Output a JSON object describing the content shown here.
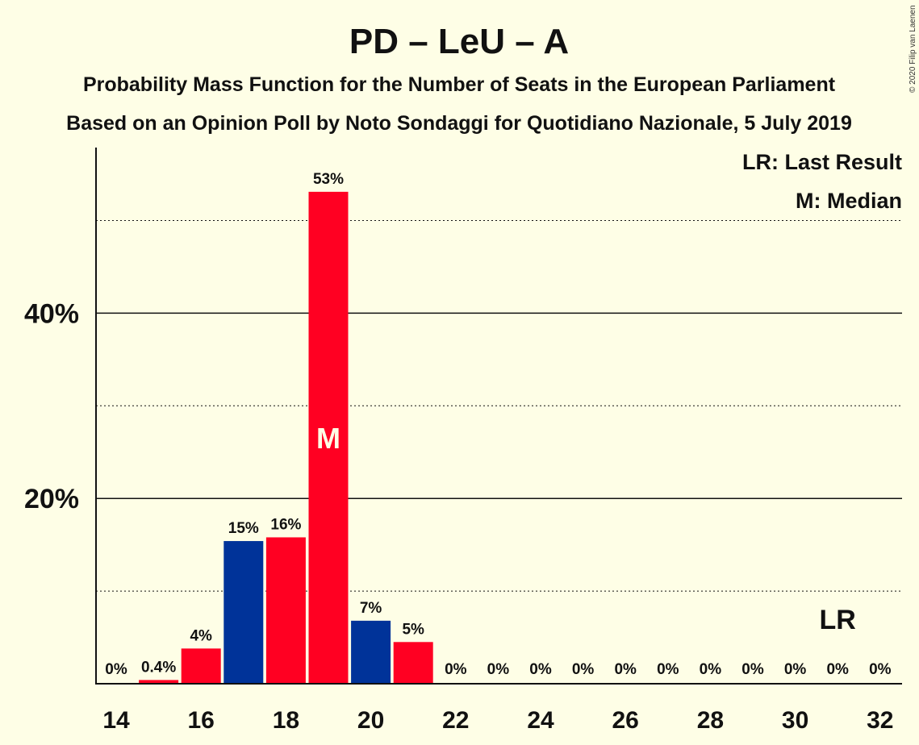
{
  "chart_data": {
    "type": "bar",
    "title": "PD – LeU – A",
    "subtitle_1": "Probability Mass Function for the Number of Seats in the European Parliament",
    "subtitle_2": "Based on an Opinion Poll by Noto Sondaggi for Quotidiano Nazionale, 5 July 2019",
    "copyright": "© 2020 Filip van Laenen",
    "x": [
      14,
      15,
      16,
      17,
      18,
      19,
      20,
      21,
      22,
      23,
      24,
      25,
      26,
      27,
      28,
      29,
      30,
      31,
      32
    ],
    "values": [
      0,
      0.4,
      3.8,
      15.4,
      15.8,
      53.1,
      6.8,
      4.5,
      0,
      0,
      0,
      0,
      0,
      0,
      0,
      0,
      0,
      0,
      0
    ],
    "labels": [
      "0%",
      "0.4%",
      "4%",
      "15%",
      "16%",
      "53%",
      "7%",
      "5%",
      "0%",
      "0%",
      "0%",
      "0%",
      "0%",
      "0%",
      "0%",
      "0%",
      "0%",
      "0%",
      "0%"
    ],
    "bar_colors": [
      "#FF0022",
      "#FF0022",
      "#FF0022",
      "#003399",
      "#FF0022",
      "#FF0022",
      "#003399",
      "#FF0022",
      "#FF0022",
      "#FF0022",
      "#FF0022",
      "#FF0022",
      "#FF0022",
      "#FF0022",
      "#FF0022",
      "#FF0022",
      "#FF0022",
      "#FF0022",
      "#FF0022"
    ],
    "x_ticks": [
      14,
      16,
      18,
      20,
      22,
      24,
      26,
      28,
      30,
      32
    ],
    "y_ticks": [
      {
        "value": 20,
        "label": "20%"
      },
      {
        "value": 40,
        "label": "40%"
      }
    ],
    "minor_gridlines": [
      10,
      30,
      50
    ],
    "ylim": [
      0,
      58
    ],
    "median_seat": 19,
    "median_marker": "M",
    "last_result_seat": 31,
    "last_result_marker": "LR",
    "legend": [
      "LR: Last Result",
      "M: Median"
    ],
    "legend_position": "top-right",
    "colors": {
      "red": "#FF0022",
      "blue": "#003399",
      "background": "#FEFEE6"
    }
  }
}
